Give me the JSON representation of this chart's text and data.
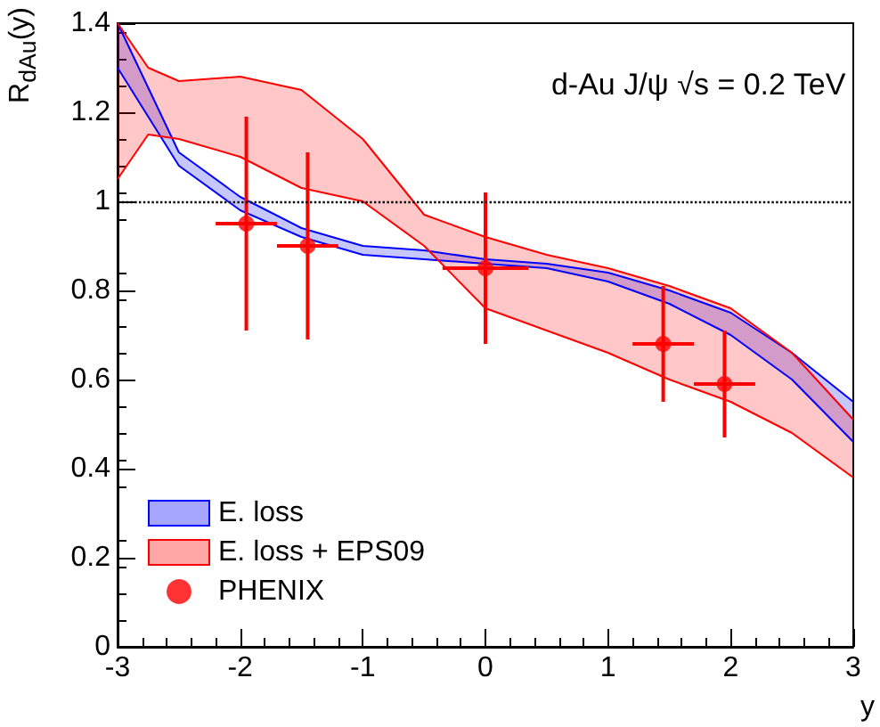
{
  "chart_data": {
    "type": "scatter",
    "title": "d-Au J/ψ √s = 0.2 TeV",
    "xlabel": "y",
    "ylabel": "R$_{dAu}$(y)",
    "xlim": [
      -3,
      3
    ],
    "xticks": [
      -3,
      -2,
      -1,
      0,
      1,
      2,
      3
    ],
    "ylim": [
      0,
      1.4
    ],
    "yticks": [
      0,
      0.2,
      0.4,
      0.6,
      0.8,
      1,
      1.2,
      1.4
    ],
    "grid": false,
    "legend": "bottom left",
    "ref_lines": [
      {
        "axis": "y",
        "value": 1,
        "color": "#000000",
        "line_style": "dotted"
      }
    ],
    "series": [
      {
        "name": "E. loss",
        "type": "area",
        "color": "#0000ff",
        "x": [
          -3,
          -2.5,
          -2,
          -1.5,
          -1,
          -0.5,
          0,
          0.5,
          1,
          1.5,
          2,
          2.5,
          3
        ],
        "values": [
          1.4,
          1.11,
          1.01,
          0.94,
          0.9,
          0.89,
          0.87,
          0.86,
          0.84,
          0.8,
          0.75,
          0.66,
          0.55
        ]
      },
      {
        "type": "line",
        "color": "#0000ff",
        "x": [
          -3,
          -2.5,
          -2,
          -1.5,
          -1,
          -0.5,
          0,
          0.5,
          1,
          1.5,
          2,
          2.5,
          3
        ],
        "values": [
          1.3,
          1.08,
          0.98,
          0.92,
          0.88,
          0.87,
          0.86,
          0.85,
          0.82,
          0.77,
          0.7,
          0.6,
          0.46
        ]
      },
      {
        "name": "E. loss + EPS09",
        "type": "area",
        "color": "#ff0000",
        "x": [
          -3,
          -2.75,
          -2.5,
          -2,
          -1.5,
          -1,
          -0.5,
          0,
          0.5,
          1,
          1.5,
          2,
          2.5,
          3
        ],
        "values": [
          1.4,
          1.3,
          1.27,
          1.28,
          1.25,
          1.14,
          0.97,
          0.92,
          0.88,
          0.85,
          0.81,
          0.76,
          0.66,
          0.51
        ]
      },
      {
        "type": "line",
        "color": "#ff0000",
        "x": [
          -3,
          -2.75,
          -2.5,
          -2,
          -1.5,
          -1,
          -0.5,
          0,
          0.5,
          1,
          1.5,
          2,
          2.5,
          3
        ],
        "values": [
          1.05,
          1.15,
          1.14,
          1.1,
          1.03,
          1.0,
          0.9,
          0.76,
          0.71,
          0.66,
          0.6,
          0.55,
          0.48,
          0.38
        ]
      },
      {
        "name": "PHENIX",
        "marker": "circle",
        "color": "#ff0000",
        "x": [
          -1.95,
          -1.45,
          0,
          1.45,
          1.95
        ],
        "values": [
          0.95,
          0.9,
          0.85,
          0.68,
          0.59
        ],
        "errors": [
          0.24,
          0.21,
          0.17,
          0.13,
          0.12
        ],
        "xerrors": [
          0.25,
          0.25,
          0.35,
          0.25,
          0.25
        ]
      }
    ]
  }
}
